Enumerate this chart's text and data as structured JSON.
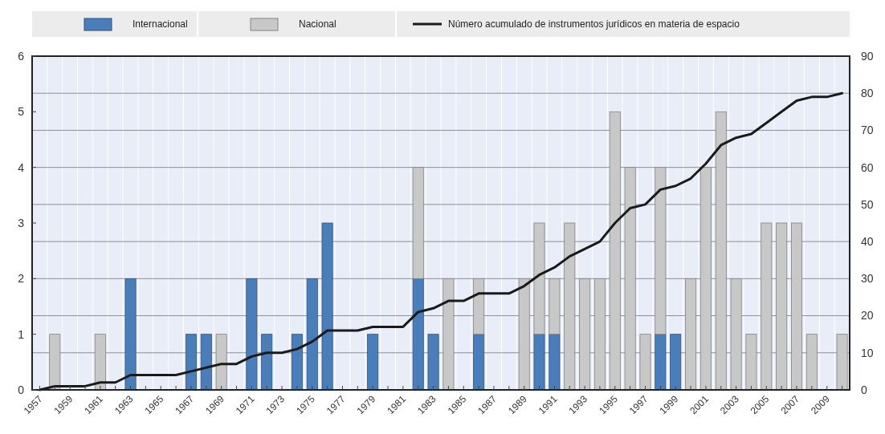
{
  "chart_data": {
    "type": "bar",
    "stacked": true,
    "categories": [
      "1957",
      null,
      "1959",
      null,
      "1961",
      null,
      "1963",
      null,
      "1965",
      null,
      "1967",
      null,
      "1969",
      null,
      "1971",
      null,
      "1973",
      null,
      "1975",
      null,
      "1977",
      null,
      "1979",
      null,
      "1981",
      null,
      "1983",
      null,
      "1985",
      null,
      "1987",
      null,
      "1989",
      null,
      "1991",
      null,
      "1993",
      null,
      "1995",
      null,
      "1997",
      null,
      "1999",
      null,
      "2001",
      null,
      "2003",
      null,
      "2005",
      null,
      "2007",
      null,
      "2009",
      null
    ],
    "series": [
      {
        "name": "Internacional",
        "color": "#4a7ebb",
        "values": [
          0,
          0,
          0,
          0,
          0,
          0,
          2,
          0,
          0,
          0,
          1,
          1,
          0,
          0,
          2,
          1,
          0,
          1,
          2,
          3,
          0,
          0,
          1,
          0,
          0,
          2,
          1,
          0,
          0,
          1,
          0,
          0,
          0,
          1,
          1,
          0,
          0,
          0,
          0,
          0,
          0,
          1,
          1,
          0,
          0,
          0,
          0,
          0,
          0,
          0,
          0,
          0,
          0,
          0
        ]
      },
      {
        "name": "Nacional",
        "color": "#c8c8c8",
        "values": [
          0,
          1,
          0,
          0,
          1,
          0,
          0,
          0,
          0,
          0,
          0,
          0,
          1,
          0,
          0,
          0,
          0,
          0,
          0,
          0,
          0,
          0,
          0,
          0,
          0,
          2,
          0,
          2,
          0,
          1,
          0,
          0,
          2,
          2,
          1,
          3,
          2,
          2,
          5,
          4,
          1,
          3,
          0,
          2,
          4,
          5,
          2,
          1,
          3,
          3,
          3,
          1,
          0,
          1
        ]
      },
      {
        "name": "Número acumulado de instrumentos jurídicos en materia de espacio",
        "type": "line",
        "axis": "y2",
        "color": "#1a1a1a",
        "values": [
          0,
          1,
          1,
          1,
          2,
          2,
          4,
          4,
          4,
          4,
          5,
          6,
          7,
          7,
          9,
          10,
          10,
          11,
          13,
          16,
          16,
          16,
          17,
          17,
          17,
          21,
          22,
          24,
          24,
          26,
          26,
          26,
          28,
          31,
          33,
          36,
          38,
          40,
          45,
          49,
          50,
          54,
          55,
          57,
          61,
          66,
          68,
          69,
          72,
          75,
          78,
          79,
          79,
          80
        ]
      }
    ],
    "ylim": [
      0,
      6
    ],
    "yticks": [
      0,
      1,
      2,
      3,
      4,
      5,
      6
    ],
    "y2lim": [
      0,
      90
    ],
    "y2ticks": [
      0,
      10,
      20,
      30,
      40,
      50,
      60,
      70,
      80,
      90
    ],
    "grid": true,
    "legend": "top"
  }
}
